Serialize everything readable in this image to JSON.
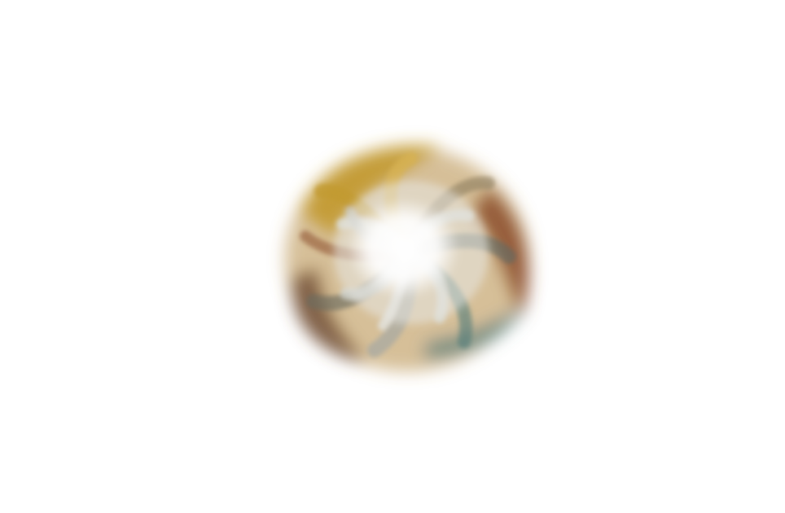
{
  "scene": {
    "subject": "swirl",
    "background_color": "#ffffff",
    "palette": {
      "ochre": "#c29a2e",
      "rust": "#8a4a2a",
      "brown": "#6b4a33",
      "teal": "#4f7a78",
      "slate": "#5d6a66",
      "grey": "#a8a9a2",
      "mist": "#d9dcd6",
      "core": "#ffffff"
    }
  }
}
